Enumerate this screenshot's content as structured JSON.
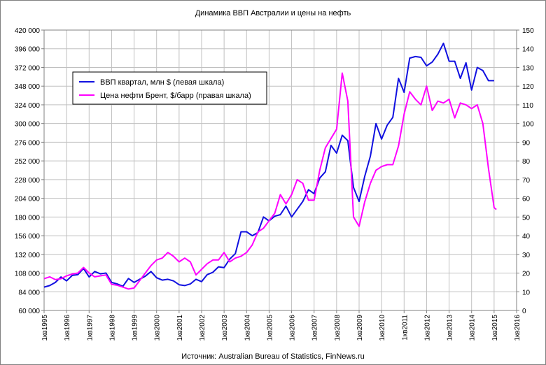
{
  "chart_data": {
    "type": "line",
    "title": "Динамика ВВП Австралии и цены на нефть",
    "source": "Источник: Australian Bureau of Statistics, FinNews.ru",
    "y_left": {
      "ylim": [
        60000,
        420000
      ],
      "tick_labels": [
        "420 000",
        "396 000",
        "372 000",
        "348 000",
        "324 000",
        "300 000",
        "276 000",
        "252 000",
        "228 000",
        "204 000",
        "180 000",
        "156 000",
        "132 000",
        "108 000",
        "84 000",
        "60 000"
      ]
    },
    "y_right": {
      "ylim": [
        0,
        150
      ],
      "tick_labels": [
        "150",
        "140",
        "130",
        "120",
        "110",
        "100",
        "90",
        "80",
        "70",
        "60",
        "50",
        "40",
        "30",
        "20",
        "10",
        "0"
      ]
    },
    "x_tick_labels": [
      "1кв1995",
      "1кв1996",
      "1кв1997",
      "1кв1998",
      "1кв1999",
      "1кв2000",
      "1кв2001",
      "1кв2002",
      "1кв2003",
      "1кв2004",
      "1кв2005",
      "1кв2006",
      "1кв2007",
      "1кв2008",
      "1кв2009",
      "1кв2010",
      "1кв2011",
      "1кв2012",
      "1кв2013",
      "1кв2014",
      "1кв2015",
      "1кв2016"
    ],
    "x_range": [
      1995,
      2016
    ],
    "grid": true,
    "legend_position": "top-left",
    "series": [
      {
        "name": "ВВП квартал, млн $ (левая шкала)",
        "axis": "left",
        "color": "#1010e0",
        "x": [
          1995.0,
          1995.25,
          1995.5,
          1995.75,
          1996.0,
          1996.25,
          1996.5,
          1996.75,
          1997.0,
          1997.25,
          1997.5,
          1997.75,
          1998.0,
          1998.25,
          1998.5,
          1998.75,
          1999.0,
          1999.25,
          1999.5,
          1999.75,
          2000.0,
          2000.25,
          2000.5,
          2000.75,
          2001.0,
          2001.25,
          2001.5,
          2001.75,
          2002.0,
          2002.25,
          2002.5,
          2002.75,
          2003.0,
          2003.25,
          2003.5,
          2003.75,
          2004.0,
          2004.25,
          2004.5,
          2004.75,
          2005.0,
          2005.25,
          2005.5,
          2005.75,
          2006.0,
          2006.25,
          2006.5,
          2006.75,
          2007.0,
          2007.25,
          2007.5,
          2007.75,
          2008.0,
          2008.25,
          2008.5,
          2008.75,
          2009.0,
          2009.25,
          2009.5,
          2009.75,
          2010.0,
          2010.25,
          2010.5,
          2010.75,
          2011.0,
          2011.25,
          2011.5,
          2011.75,
          2012.0,
          2012.25,
          2012.5,
          2012.75,
          2013.0,
          2013.25,
          2013.5,
          2013.75,
          2014.0,
          2014.25,
          2014.5,
          2014.75,
          2015.0
        ],
        "values": [
          90000,
          92000,
          96000,
          103000,
          98000,
          105000,
          106000,
          114000,
          103000,
          110000,
          107000,
          108000,
          96000,
          94000,
          91000,
          101000,
          96000,
          100000,
          104000,
          110000,
          102000,
          99000,
          100000,
          98000,
          93000,
          92000,
          94000,
          100000,
          97000,
          106000,
          109000,
          116000,
          115000,
          126000,
          133000,
          161000,
          161000,
          156000,
          160000,
          180000,
          175000,
          181000,
          183000,
          194000,
          180000,
          190000,
          200000,
          215000,
          210000,
          230000,
          238000,
          272000,
          262000,
          285000,
          278000,
          218000,
          200000,
          232000,
          258000,
          300000,
          280000,
          298000,
          308000,
          358000,
          340000,
          384000,
          386000,
          385000,
          374000,
          379000,
          389000,
          403000,
          380000,
          380000,
          358000,
          378000,
          343000,
          372000,
          368000,
          355000,
          355000
        ]
      },
      {
        "name": "Цена нефти Брент, $/барр (правая шкала)",
        "axis": "right",
        "color": "#ff00ff",
        "x": [
          1995.0,
          1995.25,
          1995.5,
          1995.75,
          1996.0,
          1996.25,
          1996.5,
          1996.75,
          1997.0,
          1997.25,
          1997.5,
          1997.75,
          1998.0,
          1998.25,
          1998.5,
          1998.75,
          1999.0,
          1999.25,
          1999.5,
          1999.75,
          2000.0,
          2000.25,
          2000.5,
          2000.75,
          2001.0,
          2001.25,
          2001.5,
          2001.75,
          2002.0,
          2002.25,
          2002.5,
          2002.75,
          2003.0,
          2003.25,
          2003.5,
          2003.75,
          2004.0,
          2004.25,
          2004.5,
          2004.75,
          2005.0,
          2005.25,
          2005.5,
          2005.75,
          2006.0,
          2006.25,
          2006.5,
          2006.75,
          2007.0,
          2007.25,
          2007.5,
          2007.75,
          2008.0,
          2008.25,
          2008.5,
          2008.75,
          2009.0,
          2009.25,
          2009.5,
          2009.75,
          2010.0,
          2010.25,
          2010.5,
          2010.75,
          2011.0,
          2011.25,
          2011.5,
          2011.75,
          2012.0,
          2012.25,
          2012.5,
          2012.75,
          2013.0,
          2013.25,
          2013.5,
          2013.75,
          2014.0,
          2014.25,
          2014.5,
          2014.75,
          2015.0,
          2015.1
        ],
        "values": [
          17,
          18,
          16.5,
          17,
          18.5,
          19.5,
          20,
          23,
          20,
          18,
          18.5,
          19,
          14,
          13.5,
          12.5,
          11.5,
          12,
          16,
          20,
          24,
          27,
          28,
          31,
          29,
          26,
          28,
          26,
          19,
          22,
          25,
          27,
          27,
          31,
          26,
          28,
          29,
          31,
          35,
          42,
          44,
          48,
          52,
          62,
          57,
          62,
          70,
          68,
          59,
          59,
          75,
          87,
          92,
          97,
          127,
          112,
          50,
          45,
          58,
          68,
          75,
          77,
          78,
          78,
          88,
          105,
          117,
          113,
          110,
          120,
          107,
          112,
          111,
          113,
          103,
          111,
          110,
          108,
          110,
          100,
          76,
          55,
          54
        ]
      }
    ]
  }
}
